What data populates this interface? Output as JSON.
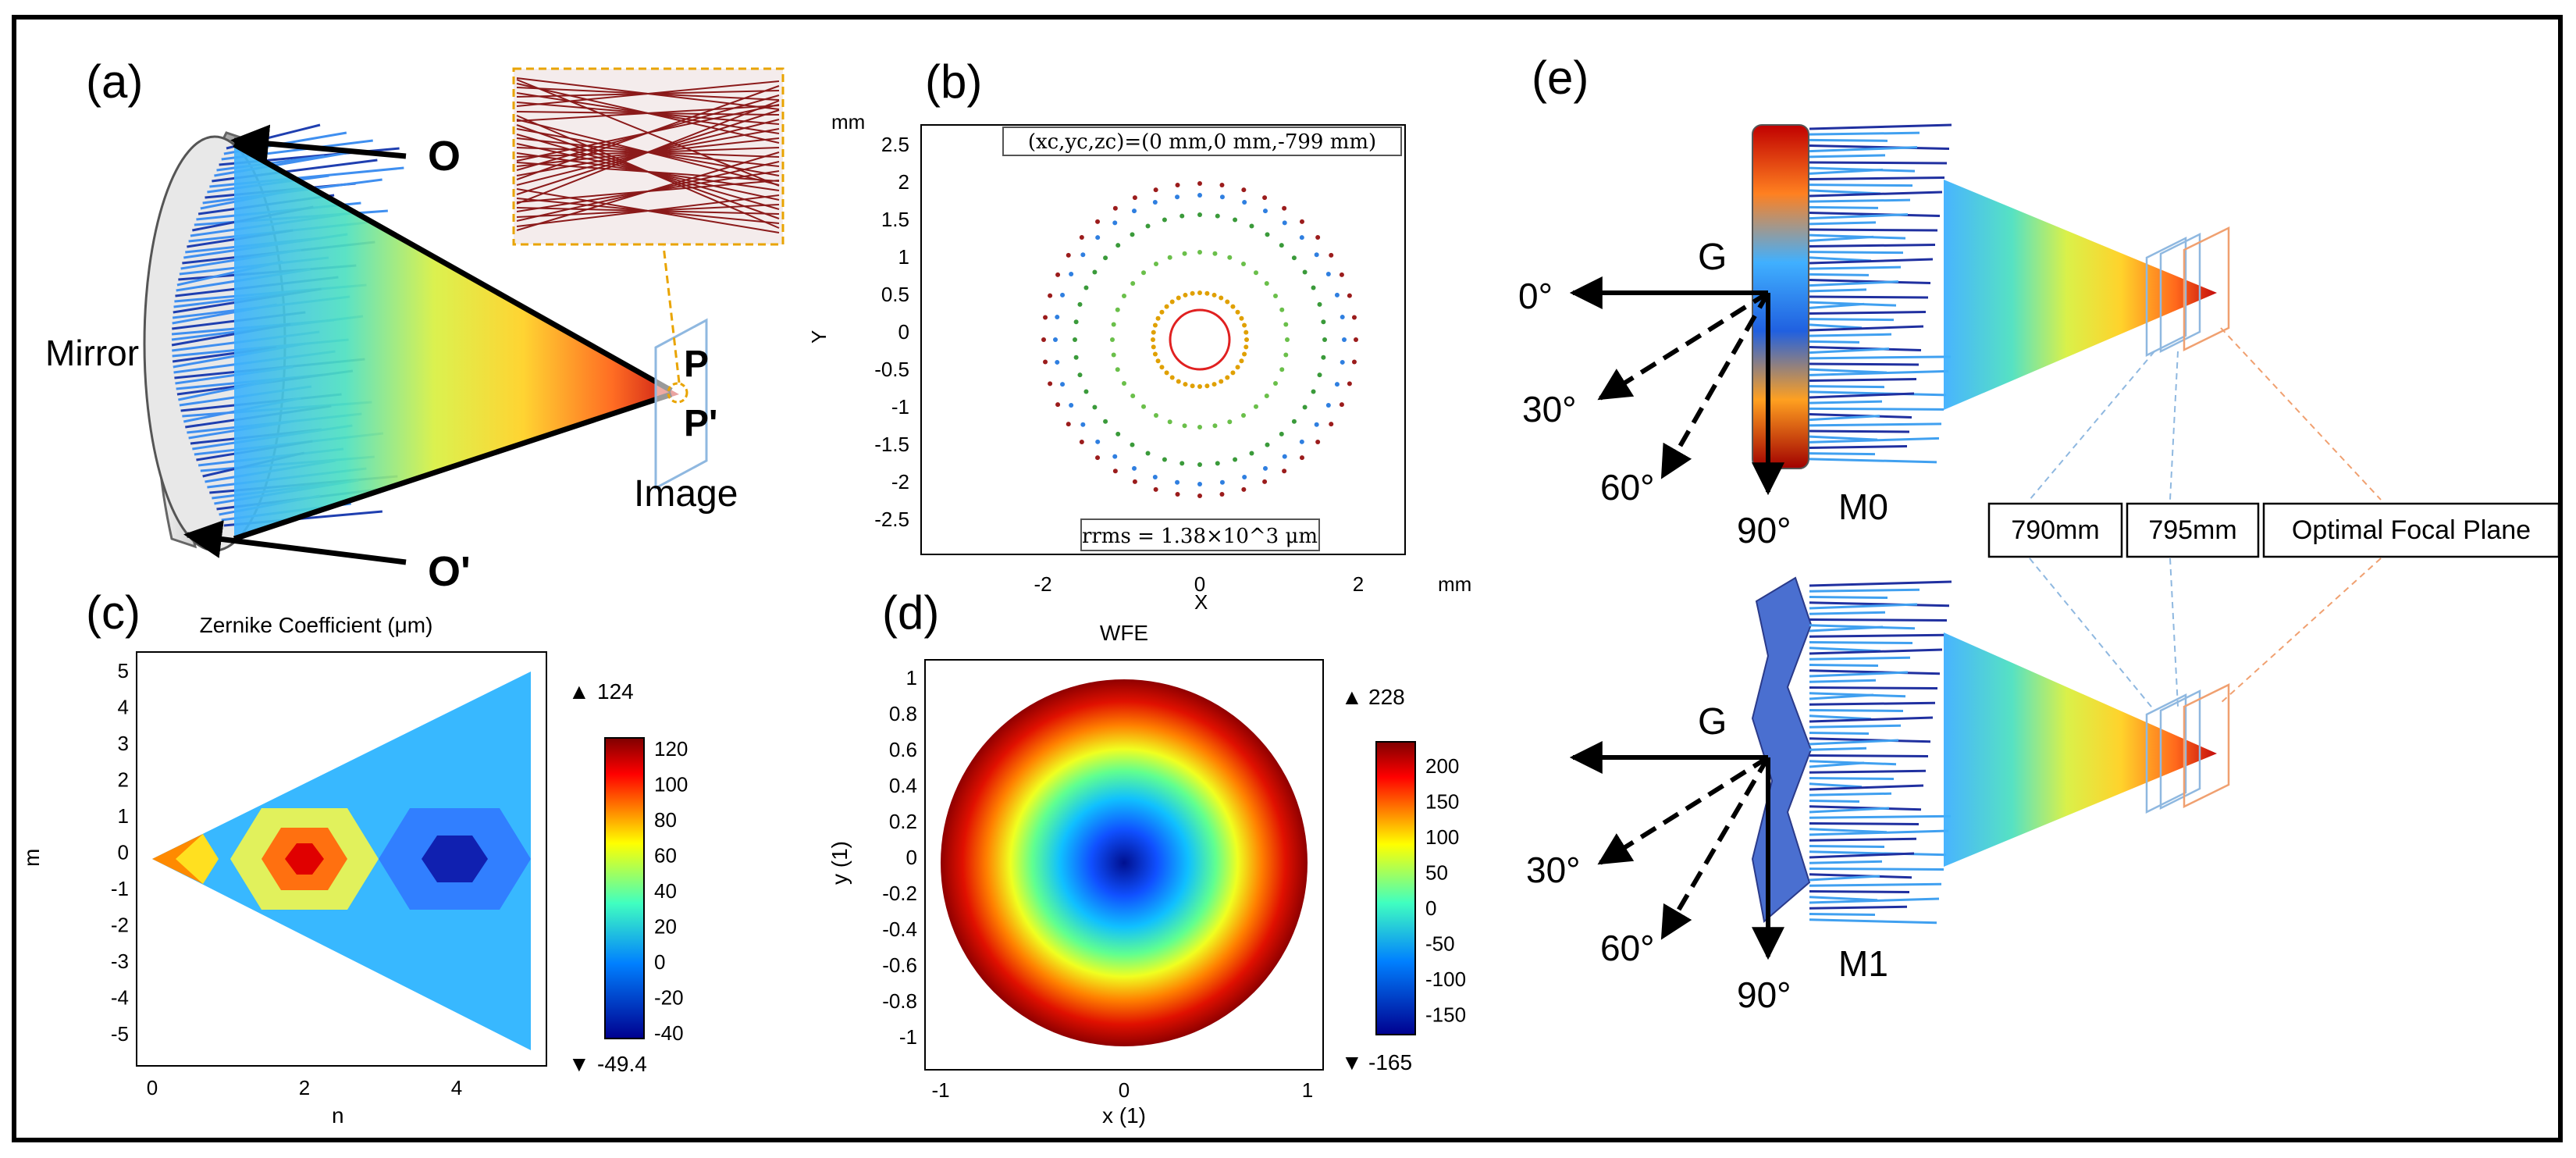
{
  "panels": {
    "a": {
      "tag": "(a)",
      "labels": {
        "object_top": "O",
        "object_bottom": "O'",
        "mirror": "Mirror",
        "image_top": "P",
        "image_bottom": "P'",
        "image": "Image"
      }
    },
    "b": {
      "tag": "(b)",
      "unit_y": "mm",
      "unit_x": "mm",
      "axis_x": "X",
      "axis_y": "Y",
      "top_box": "(xc,yc,zc)=(0 mm,0 mm,-799 mm)",
      "bottom_box": "rrms = 1.38×10^3 μm",
      "yticks": [
        "2.5",
        "2",
        "1.5",
        "1",
        "0.5",
        "0",
        "-0.5",
        "-1",
        "-1.5",
        "-2",
        "-2.5"
      ],
      "xticks": [
        "-2",
        "0",
        "2"
      ]
    },
    "c": {
      "tag": "(c)",
      "title": "Zernike Coefficient (μm)",
      "xlabel": "n",
      "ylabel": "m",
      "yticks": [
        "5",
        "4",
        "3",
        "2",
        "1",
        "0",
        "-1",
        "-2",
        "-3",
        "-4",
        "-5"
      ],
      "xticks": [
        "0",
        "2",
        "4"
      ],
      "max_label": "124",
      "min_label": "-49.4",
      "colorbar_ticks": [
        "120",
        "100",
        "80",
        "60",
        "40",
        "20",
        "0",
        "-20",
        "-40"
      ]
    },
    "d": {
      "tag": "(d)",
      "title": "WFE",
      "xlabel": "x (1)",
      "ylabel": "y (1)",
      "yticks": [
        "1",
        "0.8",
        "0.6",
        "0.4",
        "0.2",
        "0",
        "-0.2",
        "-0.4",
        "-0.6",
        "-0.8",
        "-1"
      ],
      "xticks": [
        "-1",
        "0",
        "1"
      ],
      "max_label": "228",
      "min_label": "-165",
      "colorbar_ticks": [
        "200",
        "150",
        "100",
        "50",
        "0",
        "-50",
        "-100",
        "-150"
      ]
    },
    "e": {
      "tag": "(e)",
      "labels": {
        "g_top": "G",
        "g_bottom": "G",
        "angle_0": "0°",
        "angle_30_top": "30°",
        "angle_60_top": "60°",
        "angle_90_top": "90°",
        "angle_30_bottom": "30°",
        "angle_60_bottom": "60°",
        "angle_90_bottom": "90°",
        "mirror_top": "M0",
        "mirror_bottom": "M1",
        "box_790": "790mm",
        "box_795": "795mm",
        "box_optimal": "Optimal Focal Plane"
      }
    }
  },
  "colors": {
    "frame": "#000000",
    "ray_blue": "#2f6fd6",
    "ray_dark": "#7a1a1a",
    "inset_border": "#e9a400",
    "plane_blue": "#8fb8e0",
    "plane_orange": "#f0a070"
  }
}
